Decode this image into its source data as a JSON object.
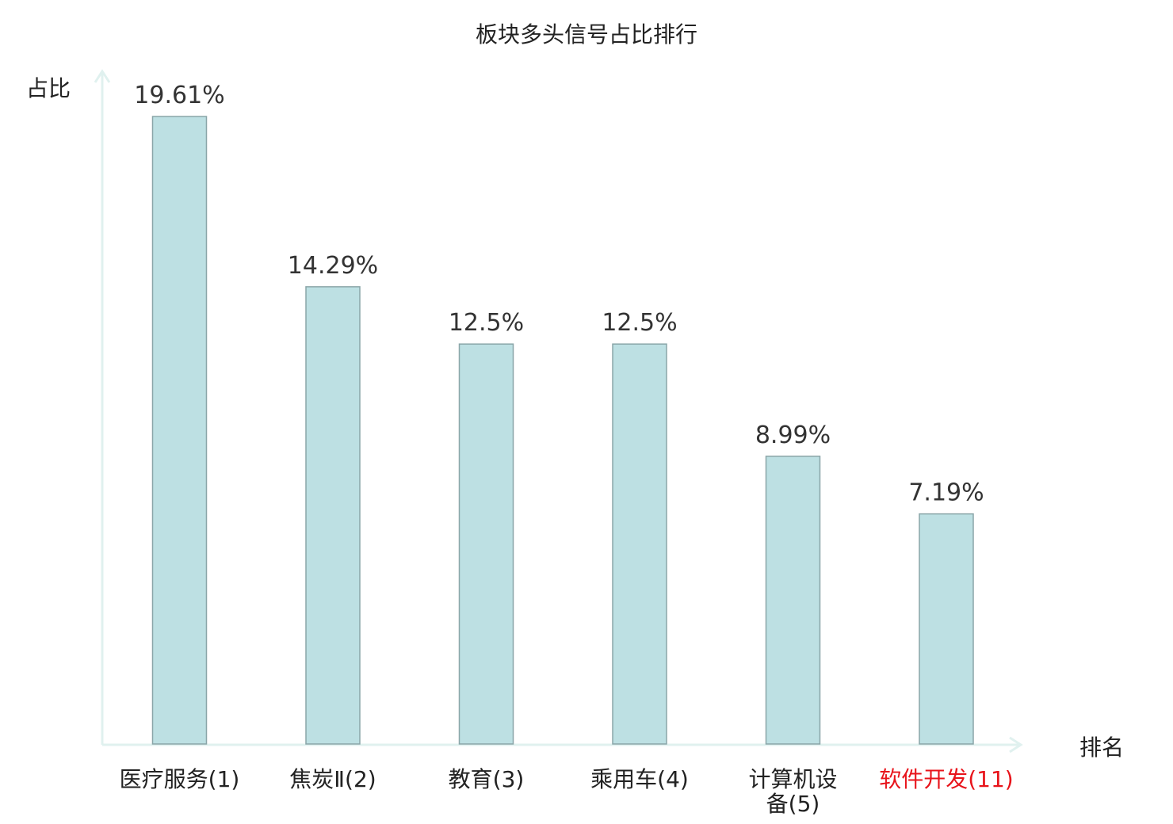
{
  "chart_data": {
    "type": "bar",
    "title": "板块多头信号占比排行",
    "ylabel": "占比",
    "xlabel": "排名",
    "ylim": [
      0,
      19.61
    ],
    "categories": [
      {
        "name": "医疗服务",
        "rank": "(1)",
        "label_lines": [
          "医疗服务(1)"
        ]
      },
      {
        "name": "焦炭Ⅱ",
        "rank": "(2)",
        "label_lines": [
          "焦炭Ⅱ(2)"
        ]
      },
      {
        "name": "教育",
        "rank": "(3)",
        "label_lines": [
          "教育(3)"
        ]
      },
      {
        "name": "乘用车",
        "rank": "(4)",
        "label_lines": [
          "乘用车(4)"
        ]
      },
      {
        "name": "计算机设备",
        "rank": "(5)",
        "label_lines": [
          "计算机设",
          "备(5)"
        ]
      },
      {
        "name": "软件开发",
        "rank": "(11)",
        "label_lines": [
          "软件开发(11)"
        ],
        "highlight": true
      }
    ],
    "values": [
      19.61,
      14.29,
      12.5,
      12.5,
      8.99,
      7.19
    ],
    "value_labels": [
      "19.61%",
      "14.29%",
      "12.5%",
      "12.5%",
      "8.99%",
      "7.19%"
    ],
    "grid": false,
    "colors": {
      "bar_fill": "#bde0e3",
      "bar_stroke": "#8aa5a8",
      "axis": "#e0f1ef",
      "text": "#333333",
      "highlight_text": "#e8141b"
    }
  }
}
